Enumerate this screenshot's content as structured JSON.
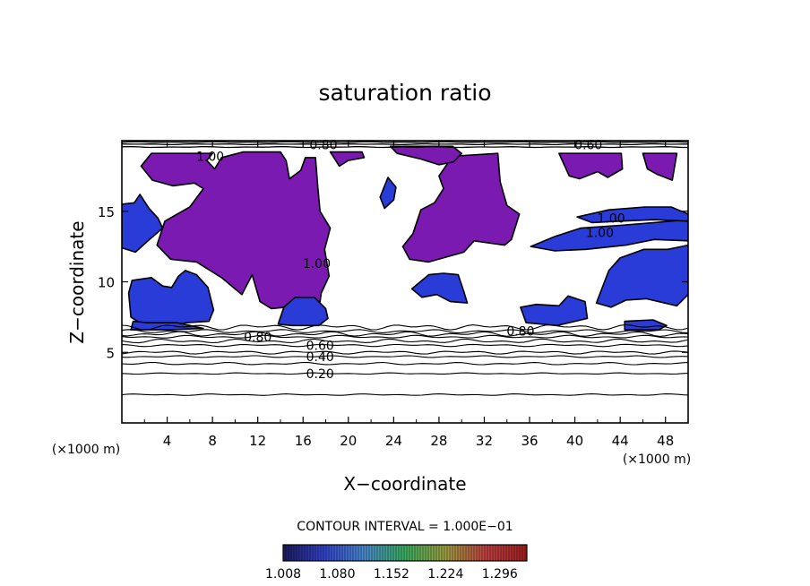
{
  "chart_data": {
    "type": "heatmap",
    "title": "saturation ratio",
    "xlabel": "X−coordinate",
    "ylabel": "Z−coordinate",
    "x_unit": "(×1000 m)",
    "y_unit": "(×1000 m)",
    "xlim": [
      0,
      50
    ],
    "ylim": [
      0,
      20
    ],
    "x_ticks": [
      4,
      8,
      12,
      16,
      20,
      24,
      28,
      32,
      36,
      40,
      44,
      48
    ],
    "y_ticks": [
      5,
      10,
      15
    ],
    "contour_interval_text": "CONTOUR INTERVAL = 1.000E−01",
    "contour_lines": [
      {
        "label": "0.20",
        "z": 3.5,
        "label_x": 17.5
      },
      {
        "label": "0.40",
        "z": 4.7,
        "label_x": 17.5
      },
      {
        "label": "0.60",
        "z": 5.5,
        "label_x": 17.5
      },
      {
        "label": "0.80",
        "z": 6.1,
        "label_x": 12
      },
      {
        "label": "0.80",
        "z": 6.5,
        "label_x": 35.2
      },
      {
        "label": "0.80",
        "z": 19.7,
        "label_x": 17.8
      },
      {
        "label": "0.60",
        "z": 19.7,
        "label_x": 41.2
      },
      {
        "label": "1.00",
        "z": 18.9,
        "label_x": 7.8
      },
      {
        "label": "1.00",
        "z": 13.5,
        "label_x": 42.2
      },
      {
        "label": "1.00",
        "z": 14.5,
        "label_x": 43.2
      },
      {
        "label": "1.00",
        "z": 11.3,
        "label_x": 17.2
      }
    ],
    "colorbar": {
      "min": 1.008,
      "max": 1.332,
      "tick_labels": [
        "1.008",
        "1.080",
        "1.152",
        "1.224",
        "1.296"
      ],
      "colors": [
        "#1a1a5c",
        "#3344cc",
        "#4a8ad0",
        "#3ab060",
        "#a0a040",
        "#c04040",
        "#a02020"
      ]
    },
    "supersat_fill_color": "#7a1ab0",
    "blue_fill_color": "#2a3cd8",
    "regions": [
      {
        "name": "purple-cloud-west",
        "color": "purple",
        "outline": [
          [
            1.7,
            18.2
          ],
          [
            2.6,
            19.1
          ],
          [
            8,
            19.1
          ],
          [
            7.5,
            18.6
          ],
          [
            8.2,
            18
          ],
          [
            8.8,
            18.8
          ],
          [
            10.7,
            19.2
          ],
          [
            14,
            19.2
          ],
          [
            14.5,
            18.6
          ],
          [
            14.8,
            17.3
          ],
          [
            15.8,
            17.9
          ],
          [
            16.2,
            18.8
          ],
          [
            17.1,
            18.8
          ],
          [
            17.3,
            16.7
          ],
          [
            17.5,
            15
          ],
          [
            18.4,
            13.8
          ],
          [
            17.9,
            12.3
          ],
          [
            18.3,
            10.4
          ],
          [
            17.6,
            9.2
          ],
          [
            17.4,
            8
          ],
          [
            15.3,
            7.4
          ],
          [
            14.4,
            8.2
          ],
          [
            13.2,
            8.1
          ],
          [
            12.2,
            8.6
          ],
          [
            11.5,
            10.5
          ],
          [
            10.6,
            9.1
          ],
          [
            8.8,
            10.3
          ],
          [
            6.6,
            11.4
          ],
          [
            4.3,
            11.6
          ],
          [
            3.1,
            12.6
          ],
          [
            3.8,
            14.3
          ],
          [
            6,
            15.3
          ],
          [
            7.2,
            16.6
          ],
          [
            6.4,
            17
          ],
          [
            4.5,
            16.8
          ],
          [
            2.7,
            17.2
          ]
        ]
      },
      {
        "name": "purple-cloud-east",
        "color": "purple",
        "outline": [
          [
            29.2,
            18.9
          ],
          [
            33.2,
            19.1
          ],
          [
            33.4,
            17.1
          ],
          [
            34,
            15.4
          ],
          [
            35.1,
            14.8
          ],
          [
            34.4,
            13
          ],
          [
            33.8,
            12.6
          ],
          [
            31.1,
            12.9
          ],
          [
            30.2,
            12.1
          ],
          [
            27.1,
            11.4
          ],
          [
            25.4,
            11.6
          ],
          [
            24.8,
            12.5
          ],
          [
            25.7,
            13.4
          ],
          [
            26.4,
            15.1
          ],
          [
            27.6,
            15.6
          ],
          [
            28.4,
            16.6
          ],
          [
            28,
            17.5
          ]
        ]
      },
      {
        "name": "purple-cloud-northeast",
        "color": "purple",
        "outline": [
          [
            38.6,
            19.1
          ],
          [
            44.1,
            19.1
          ],
          [
            44.2,
            18
          ],
          [
            42.9,
            17.4
          ],
          [
            42,
            17.8
          ],
          [
            40.4,
            17.3
          ],
          [
            39.5,
            17.5
          ]
        ]
      },
      {
        "name": "purple-cloud-top",
        "color": "purple",
        "outline": [
          [
            23.7,
            19.6
          ],
          [
            24.3,
            19.1
          ],
          [
            26.4,
            18.7
          ],
          [
            28,
            18.3
          ],
          [
            29.3,
            18.5
          ],
          [
            30,
            19.1
          ],
          [
            29.2,
            19.6
          ]
        ]
      },
      {
        "name": "purple-cloud-far-east",
        "color": "purple",
        "outline": [
          [
            46,
            19.1
          ],
          [
            49,
            19.1
          ],
          [
            48.6,
            17.2
          ],
          [
            47.3,
            17.6
          ],
          [
            46.4,
            18
          ]
        ]
      },
      {
        "name": "purple-patch-north",
        "color": "purple",
        "outline": [
          [
            18.4,
            19.2
          ],
          [
            21.2,
            19.2
          ],
          [
            21.4,
            18.8
          ],
          [
            20,
            18.6
          ],
          [
            19.2,
            18.2
          ]
        ]
      },
      {
        "name": "blue-cloud-west-low",
        "color": "blue",
        "outline": [
          [
            0.8,
            7.5
          ],
          [
            0.6,
            9.2
          ],
          [
            0.9,
            10.1
          ],
          [
            2.6,
            10.3
          ],
          [
            3.6,
            9.7
          ],
          [
            4.4,
            9.6
          ],
          [
            5,
            10.4
          ],
          [
            5.6,
            10.8
          ],
          [
            6.6,
            10.5
          ],
          [
            7.6,
            9.6
          ],
          [
            8.1,
            8
          ],
          [
            7.7,
            7.2
          ],
          [
            5.6,
            7.1
          ],
          [
            4.5,
            6.8
          ],
          [
            2.2,
            6.8
          ]
        ]
      },
      {
        "name": "blue-cloud-west-mid",
        "color": "blue",
        "outline": [
          [
            0,
            12.4
          ],
          [
            0,
            15.5
          ],
          [
            1.1,
            15.6
          ],
          [
            1.6,
            16.2
          ],
          [
            2.4,
            15.2
          ],
          [
            3.2,
            14.5
          ],
          [
            3.6,
            13.8
          ],
          [
            2.3,
            12.9
          ],
          [
            1.2,
            12.1
          ]
        ]
      },
      {
        "name": "blue-cloud-center-south",
        "color": "blue",
        "outline": [
          [
            13.8,
            7
          ],
          [
            14.3,
            8.2
          ],
          [
            15.3,
            8.9
          ],
          [
            17,
            8.9
          ],
          [
            18,
            8.1
          ],
          [
            18.2,
            7.4
          ],
          [
            17.4,
            6.9
          ],
          [
            15,
            6.9
          ]
        ]
      },
      {
        "name": "blue-cloud-center-east",
        "color": "blue",
        "outline": [
          [
            25.6,
            9.5
          ],
          [
            27.1,
            10.5
          ],
          [
            28.4,
            10.6
          ],
          [
            29.7,
            10.5
          ],
          [
            30.2,
            9.3
          ],
          [
            30.5,
            8.5
          ],
          [
            29,
            8.6
          ],
          [
            27.8,
            9.1
          ],
          [
            26.5,
            8.9
          ]
        ]
      },
      {
        "name": "blue-cloud-east-low",
        "color": "blue",
        "outline": [
          [
            35.7,
            7.1
          ],
          [
            35.2,
            8.2
          ],
          [
            36.6,
            8.4
          ],
          [
            38.6,
            8.3
          ],
          [
            39.4,
            9
          ],
          [
            40.9,
            8.6
          ],
          [
            41.1,
            7.4
          ],
          [
            38.4,
            6.9
          ]
        ]
      },
      {
        "name": "blue-cloud-east-big",
        "color": "blue",
        "outline": [
          [
            41.9,
            8.5
          ],
          [
            43,
            10.8
          ],
          [
            44,
            11.7
          ],
          [
            46.1,
            12.3
          ],
          [
            48.2,
            12.3
          ],
          [
            50,
            12.6
          ],
          [
            50,
            9.1
          ],
          [
            49,
            8.3
          ],
          [
            46.3,
            8.8
          ],
          [
            44.5,
            8.7
          ],
          [
            43.2,
            8.2
          ]
        ]
      },
      {
        "name": "blue-band-east",
        "color": "blue",
        "outline": [
          [
            36.1,
            12.5
          ],
          [
            38.2,
            13.2
          ],
          [
            40.5,
            13.8
          ],
          [
            44,
            14
          ],
          [
            47,
            14.2
          ],
          [
            50,
            14.4
          ],
          [
            50,
            12.9
          ],
          [
            47,
            13
          ],
          [
            44.5,
            12.6
          ],
          [
            41,
            12.3
          ],
          [
            38.2,
            12.2
          ]
        ]
      },
      {
        "name": "blue-band-east-upper",
        "color": "blue",
        "outline": [
          [
            40.2,
            14.6
          ],
          [
            43,
            15.1
          ],
          [
            46.2,
            15.3
          ],
          [
            48.5,
            15.3
          ],
          [
            50,
            14.8
          ],
          [
            50,
            14.3
          ],
          [
            47,
            14.4
          ],
          [
            44,
            14.3
          ],
          [
            41.5,
            14.2
          ]
        ]
      },
      {
        "name": "blue-east-base",
        "color": "blue",
        "outline": [
          [
            44.4,
            6.6
          ],
          [
            44.4,
            7.2
          ],
          [
            46.9,
            7.3
          ],
          [
            48.1,
            6.9
          ],
          [
            47.4,
            6.6
          ]
        ]
      },
      {
        "name": "blue-west-base",
        "color": "blue",
        "outline": [
          [
            0.8,
            6.6
          ],
          [
            1,
            7.2
          ],
          [
            2.3,
            7.1
          ],
          [
            4.9,
            7.1
          ],
          [
            7.2,
            6.7
          ],
          [
            4.3,
            6.6
          ]
        ]
      },
      {
        "name": "blue-speck-center",
        "color": "blue",
        "outline": [
          [
            23.2,
            16.8
          ],
          [
            23.5,
            17.4
          ],
          [
            24.2,
            16.7
          ],
          [
            24,
            15.8
          ],
          [
            23.2,
            15.2
          ],
          [
            22.8,
            16
          ]
        ]
      }
    ]
  }
}
